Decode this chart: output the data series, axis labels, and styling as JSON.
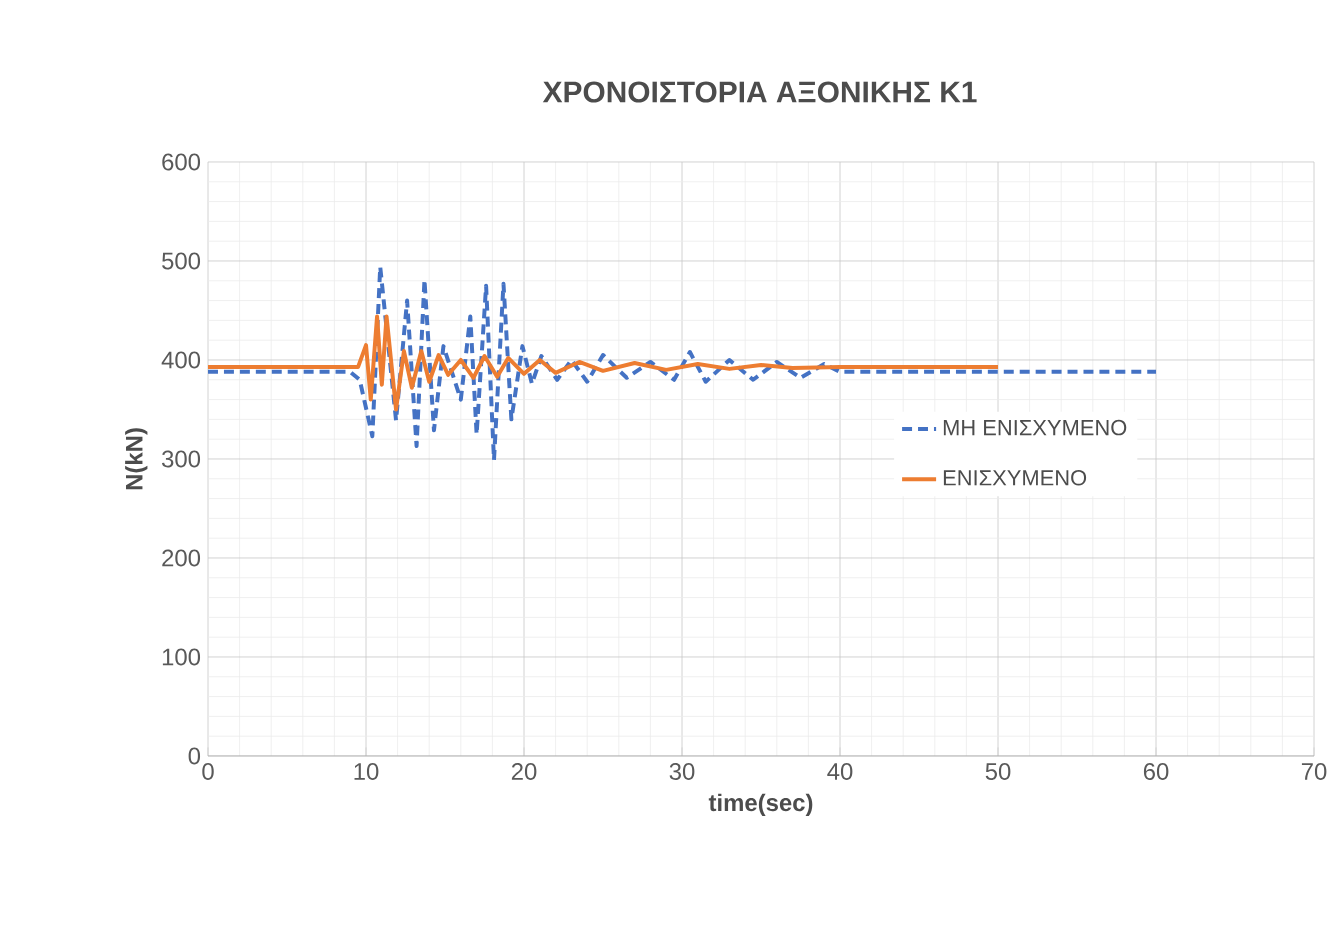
{
  "chart_data": {
    "type": "line",
    "title": "ΧΡΟΝΟΙΣΤΟΡΙΑ ΑΞΟΝΙΚΗΣ Κ1",
    "xlabel": "time(sec)",
    "ylabel": "N(kN)",
    "xlim": [
      0,
      70
    ],
    "ylim": [
      0,
      600
    ],
    "xticks": [
      0,
      10,
      20,
      30,
      40,
      50,
      60,
      70
    ],
    "yticks": [
      0,
      100,
      200,
      300,
      400,
      500,
      600
    ],
    "grid": true,
    "legend": "right",
    "marker": "none",
    "series": [
      {
        "name": "ΜΗ ΕΝΙΣΧΥΜΕΝΟ",
        "color": "#4472c4",
        "line_style": "dashed",
        "x": [
          0,
          9,
          9.6,
          10.4,
          10.9,
          11.9,
          12.6,
          13.2,
          13.7,
          14.3,
          14.9,
          16.0,
          16.6,
          17.0,
          17.6,
          18.1,
          18.7,
          19.2,
          19.9,
          20.5,
          21.1,
          22.1,
          23.0,
          24.0,
          25.0,
          26.5,
          28.0,
          29.5,
          30.5,
          31.5,
          33.0,
          34.5,
          36.0,
          37.5,
          39.0,
          40.0,
          60
        ],
        "values": [
          388,
          388,
          380,
          323,
          494,
          339,
          460,
          313,
          481,
          329,
          414,
          360,
          444,
          325,
          475,
          299,
          477,
          340,
          414,
          376,
          404,
          380,
          400,
          378,
          405,
          382,
          398,
          380,
          408,
          378,
          400,
          380,
          398,
          382,
          396,
          388,
          388
        ]
      },
      {
        "name": "ΕΝΙΣΧΥΜΕΝΟ",
        "color": "#ed7d31",
        "line_style": "solid",
        "x": [
          0,
          9.5,
          10.0,
          10.3,
          10.7,
          11.0,
          11.3,
          11.9,
          12.4,
          12.9,
          13.5,
          14.0,
          14.6,
          15.2,
          16.0,
          16.8,
          17.5,
          18.3,
          19.0,
          20.0,
          21.0,
          22.0,
          23.5,
          25.0,
          27.0,
          29.0,
          31.0,
          33.0,
          35.0,
          37.0,
          40.0,
          50
        ],
        "values": [
          393,
          393,
          415,
          360,
          444,
          375,
          444,
          350,
          409,
          372,
          409,
          378,
          405,
          385,
          400,
          382,
          404,
          383,
          402,
          386,
          400,
          387,
          398,
          389,
          397,
          390,
          396,
          391,
          395,
          392,
          393,
          393
        ]
      }
    ]
  }
}
